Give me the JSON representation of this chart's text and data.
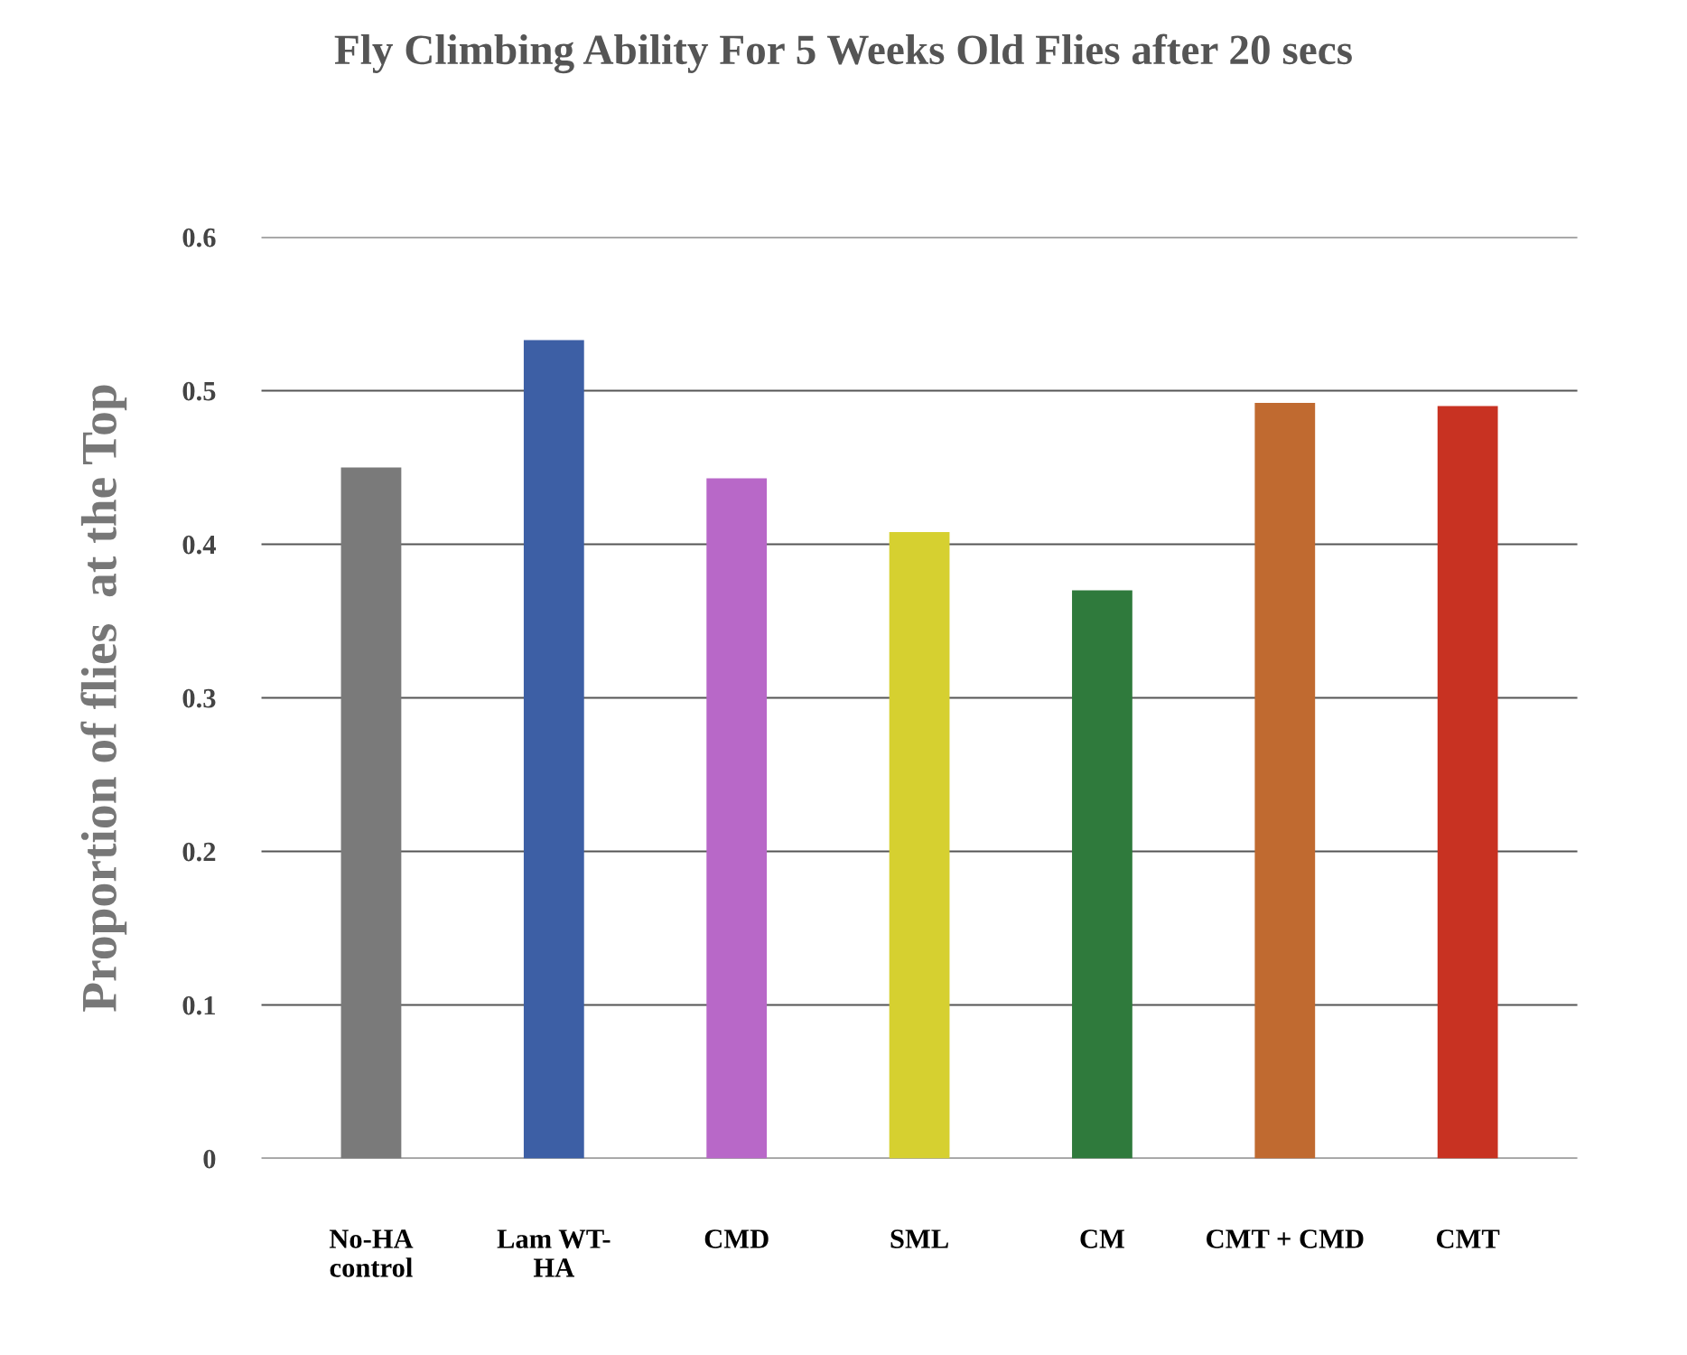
{
  "chart_data": {
    "type": "bar",
    "title": "Fly Climbing Ability For 5 Weeks Old Flies after 20 secs",
    "ylabel": "Proportion of flies  at the Top",
    "categories": [
      "No-HA\ncontrol",
      "Lam WT-\nHA",
      "CMD",
      "SML",
      "CM",
      "CMT + CMD",
      "CMT"
    ],
    "values": [
      0.45,
      0.533,
      0.443,
      0.408,
      0.37,
      0.492,
      0.49
    ],
    "colors": [
      "#7a7a7a",
      "#3d5fa5",
      "#b868c8",
      "#d6d030",
      "#2f7a3c",
      "#c06a30",
      "#c83222"
    ],
    "ylim": [
      0,
      0.6
    ],
    "yticks": [
      0,
      0.1,
      0.2,
      0.3,
      0.4,
      0.5,
      0.6
    ],
    "grid": "y"
  }
}
